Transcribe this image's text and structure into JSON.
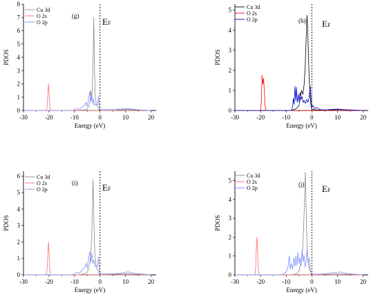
{
  "chart_data": [
    {
      "type": "line",
      "panel_label": "(g)",
      "xlabel": "Energy (eV)",
      "ylabel": "PDOS",
      "xlim": [
        -30,
        22
      ],
      "ylim": [
        0,
        8
      ],
      "xticks": [
        -30,
        -20,
        -10,
        0,
        10,
        20
      ],
      "yticks": [
        0,
        1,
        2,
        3,
        4,
        5,
        6,
        7,
        8
      ],
      "fermi_label": "E",
      "fermi_sub": "F",
      "legend": [
        "Cu 3d",
        "O 2s",
        "O 2p"
      ],
      "series": [
        {
          "name": "Cu 3d",
          "color": "#888888",
          "points": [
            [
              -30,
              0
            ],
            [
              -8,
              0
            ],
            [
              -6,
              0.05
            ],
            [
              -5,
              0.1
            ],
            [
              -4.5,
              0.3
            ],
            [
              -4,
              0.6
            ],
            [
              -3.6,
              1.5
            ],
            [
              -3.3,
              0.8
            ],
            [
              -3,
              1.8
            ],
            [
              -2.7,
              4
            ],
            [
              -2.45,
              7
            ],
            [
              -2.2,
              3.5
            ],
            [
              -1.9,
              1.2
            ],
            [
              -1.5,
              0.5
            ],
            [
              -1,
              0.3
            ],
            [
              -0.5,
              0.1
            ],
            [
              0,
              0
            ],
            [
              5,
              0
            ],
            [
              10,
              0.08
            ],
            [
              14,
              0.04
            ],
            [
              20,
              0
            ]
          ]
        },
        {
          "name": "O 2s",
          "color": "#ff6b6b",
          "points": [
            [
              -30,
              0
            ],
            [
              -21,
              0
            ],
            [
              -20.7,
              0.4
            ],
            [
              -20.4,
              1.5
            ],
            [
              -20.2,
              2
            ],
            [
              -20,
              1.4
            ],
            [
              -19.7,
              0.3
            ],
            [
              -19.4,
              0
            ],
            [
              20,
              0
            ]
          ]
        },
        {
          "name": "O 2p",
          "color": "#7a8bff",
          "points": [
            [
              -30,
              0
            ],
            [
              -11,
              0
            ],
            [
              -10,
              0.05
            ],
            [
              -9,
              0.15
            ],
            [
              -8,
              0.05
            ],
            [
              -7,
              0.25
            ],
            [
              -6,
              0.4
            ],
            [
              -5.5,
              0.6
            ],
            [
              -5,
              0.3
            ],
            [
              -4.5,
              0.9
            ],
            [
              -4,
              1.4
            ],
            [
              -3.6,
              0.7
            ],
            [
              -3.2,
              1.1
            ],
            [
              -2.8,
              0.5
            ],
            [
              -2.5,
              0.9
            ],
            [
              -2.2,
              0.4
            ],
            [
              -1.5,
              0.5
            ],
            [
              -1,
              0.4
            ],
            [
              -0.6,
              1.05
            ],
            [
              -0.3,
              0.3
            ],
            [
              0,
              0.1
            ],
            [
              1,
              0.08
            ],
            [
              3,
              0.06
            ],
            [
              6,
              0.08
            ],
            [
              10,
              0.15
            ],
            [
              13,
              0.1
            ],
            [
              16,
              0.04
            ],
            [
              20,
              0
            ]
          ]
        }
      ]
    },
    {
      "type": "line",
      "panel_label": "(h)",
      "xlabel": "Energy (eV)",
      "ylabel": "PDOS",
      "xlim": [
        -30,
        22
      ],
      "ylim": [
        0,
        5.3
      ],
      "xticks": [
        -30,
        -20,
        -10,
        0,
        10,
        20
      ],
      "yticks": [
        0,
        1,
        2,
        3,
        4,
        5
      ],
      "fermi_label": "E",
      "fermi_sub": "F",
      "legend": [
        "Cu 3d",
        "O 2s",
        "O 2p"
      ],
      "series": [
        {
          "name": "Cu 3d",
          "color": "#000000",
          "points": [
            [
              -30,
              0
            ],
            [
              -8,
              0
            ],
            [
              -6,
              0.1
            ],
            [
              -5,
              0.25
            ],
            [
              -4.5,
              0.6
            ],
            [
              -4,
              1.0
            ],
            [
              -3.5,
              0.8
            ],
            [
              -3,
              1.3
            ],
            [
              -2.6,
              2.2
            ],
            [
              -2.2,
              3.6
            ],
            [
              -1.9,
              4.75
            ],
            [
              -1.6,
              4.1
            ],
            [
              -1.3,
              2.6
            ],
            [
              -1,
              1.5
            ],
            [
              -0.7,
              0.8
            ],
            [
              -0.4,
              0.3
            ],
            [
              0,
              0.05
            ],
            [
              5,
              0
            ],
            [
              10,
              0.05
            ],
            [
              20,
              0
            ]
          ]
        },
        {
          "name": "O 2s",
          "color": "#ff0000",
          "points": [
            [
              -30,
              0
            ],
            [
              -20,
              0
            ],
            [
              -19.7,
              0.4
            ],
            [
              -19.4,
              1.75
            ],
            [
              -19.1,
              1.3
            ],
            [
              -18.8,
              1.6
            ],
            [
              -18.5,
              0.9
            ],
            [
              -18.2,
              0.2
            ],
            [
              -17.9,
              0
            ],
            [
              20,
              0
            ]
          ]
        },
        {
          "name": "O 2p",
          "color": "#0000cc",
          "points": [
            [
              -30,
              0
            ],
            [
              -8,
              0
            ],
            [
              -7.5,
              0.2
            ],
            [
              -7.2,
              0.6
            ],
            [
              -6.9,
              0.3
            ],
            [
              -6.6,
              1.2
            ],
            [
              -6.3,
              0.5
            ],
            [
              -6,
              1.15
            ],
            [
              -5.7,
              0.4
            ],
            [
              -5.3,
              0.8
            ],
            [
              -5,
              0.45
            ],
            [
              -4.6,
              0.9
            ],
            [
              -4.2,
              0.55
            ],
            [
              -3.8,
              0.7
            ],
            [
              -3.4,
              0.4
            ],
            [
              -3,
              0.5
            ],
            [
              -2.5,
              0.35
            ],
            [
              -2,
              0.55
            ],
            [
              -1.5,
              0.4
            ],
            [
              -1,
              0.7
            ],
            [
              -0.6,
              1.2
            ],
            [
              -0.3,
              0.6
            ],
            [
              0,
              0.15
            ],
            [
              0.5,
              0.25
            ],
            [
              1,
              0.1
            ],
            [
              2,
              0.15
            ],
            [
              3,
              0.05
            ],
            [
              5,
              0.03
            ],
            [
              10,
              0.07
            ],
            [
              14,
              0.03
            ],
            [
              20,
              0
            ]
          ]
        }
      ]
    },
    {
      "type": "line",
      "panel_label": "(i)",
      "xlabel": "Energy (eV)",
      "ylabel": "PDOS",
      "xlim": [
        -30,
        22
      ],
      "ylim": [
        0,
        6.3
      ],
      "xticks": [
        -30,
        -20,
        -10,
        0,
        10,
        20
      ],
      "yticks": [
        0,
        1,
        2,
        3,
        4,
        5,
        6
      ],
      "fermi_label": "E",
      "fermi_sub": "F",
      "legend": [
        "Cu 3d",
        "O 2s",
        "O 2p"
      ],
      "series": [
        {
          "name": "Cu 3d",
          "color": "#888888",
          "points": [
            [
              -30,
              0
            ],
            [
              -8,
              0
            ],
            [
              -6,
              0.05
            ],
            [
              -5,
              0.15
            ],
            [
              -4.5,
              0.4
            ],
            [
              -4,
              0.7
            ],
            [
              -3.6,
              1.4
            ],
            [
              -3.3,
              2.2
            ],
            [
              -3,
              3.8
            ],
            [
              -2.75,
              5.8
            ],
            [
              -2.5,
              4
            ],
            [
              -2.2,
              2
            ],
            [
              -1.9,
              1
            ],
            [
              -1.5,
              0.5
            ],
            [
              -1,
              0.3
            ],
            [
              -0.5,
              0.1
            ],
            [
              0,
              0
            ],
            [
              10,
              0.06
            ],
            [
              20,
              0
            ]
          ]
        },
        {
          "name": "O 2s",
          "color": "#ff6b6b",
          "points": [
            [
              -30,
              0
            ],
            [
              -21,
              0
            ],
            [
              -20.7,
              0.4
            ],
            [
              -20.4,
              1.5
            ],
            [
              -20.2,
              2
            ],
            [
              -20,
              1.4
            ],
            [
              -19.7,
              0.3
            ],
            [
              -19.4,
              0
            ],
            [
              20,
              0
            ]
          ]
        },
        {
          "name": "O 2p",
          "color": "#7a8bff",
          "points": [
            [
              -30,
              0
            ],
            [
              -11,
              0
            ],
            [
              -10,
              0.05
            ],
            [
              -9,
              0.15
            ],
            [
              -8,
              0.1
            ],
            [
              -7,
              0.3
            ],
            [
              -6,
              0.45
            ],
            [
              -5.5,
              0.7
            ],
            [
              -5,
              0.4
            ],
            [
              -4.5,
              1.0
            ],
            [
              -4,
              1.4
            ],
            [
              -3.6,
              0.8
            ],
            [
              -3.2,
              1.3
            ],
            [
              -2.8,
              0.7
            ],
            [
              -2.4,
              0.9
            ],
            [
              -2,
              0.5
            ],
            [
              -1.5,
              0.55
            ],
            [
              -1,
              0.5
            ],
            [
              -0.6,
              1.1
            ],
            [
              -0.3,
              0.3
            ],
            [
              0,
              0.1
            ],
            [
              1,
              0.06
            ],
            [
              4,
              0.05
            ],
            [
              8,
              0.1
            ],
            [
              11,
              0.18
            ],
            [
              14,
              0.08
            ],
            [
              20,
              0
            ]
          ]
        }
      ]
    },
    {
      "type": "line",
      "panel_label": "(j)",
      "xlabel": "Energy (eV)",
      "ylabel": "PDOS",
      "xlim": [
        -30,
        22
      ],
      "ylim": [
        0,
        5.5
      ],
      "xticks": [
        -30,
        -20,
        -10,
        0,
        10,
        20
      ],
      "yticks": [
        0,
        1,
        2,
        3,
        4,
        5
      ],
      "fermi_label": "E",
      "fermi_sub": "F",
      "legend": [
        "Cu 3d",
        "O 2s",
        "O 2p"
      ],
      "series": [
        {
          "name": "Cu 3d",
          "color": "#888888",
          "points": [
            [
              -30,
              0
            ],
            [
              -8,
              0
            ],
            [
              -6,
              0.05
            ],
            [
              -5,
              0.2
            ],
            [
              -4.5,
              0.5
            ],
            [
              -4,
              0.8
            ],
            [
              -3.6,
              1.3
            ],
            [
              -3.2,
              2.5
            ],
            [
              -2.9,
              3.8
            ],
            [
              -2.55,
              5.45
            ],
            [
              -2.3,
              4
            ],
            [
              -2,
              2.2
            ],
            [
              -1.7,
              1
            ],
            [
              -1.3,
              0.5
            ],
            [
              -0.8,
              0.25
            ],
            [
              -0.4,
              0.1
            ],
            [
              0,
              0
            ],
            [
              10,
              0.05
            ],
            [
              20,
              0
            ]
          ]
        },
        {
          "name": "O 2s",
          "color": "#ff6b6b",
          "points": [
            [
              -30,
              0
            ],
            [
              -22.2,
              0
            ],
            [
              -21.9,
              0.4
            ],
            [
              -21.6,
              1.6
            ],
            [
              -21.4,
              2.0
            ],
            [
              -21.2,
              1.4
            ],
            [
              -20.9,
              0.3
            ],
            [
              -20.6,
              0
            ],
            [
              20,
              0
            ]
          ]
        },
        {
          "name": "O 2p",
          "color": "#7a8bff",
          "points": [
            [
              -30,
              0
            ],
            [
              -12,
              0
            ],
            [
              -11,
              0.05
            ],
            [
              -10,
              0.15
            ],
            [
              -9.3,
              0.4
            ],
            [
              -8.8,
              1.0
            ],
            [
              -8.4,
              0.3
            ],
            [
              -8,
              0.6
            ],
            [
              -7.5,
              0.3
            ],
            [
              -7,
              0.9
            ],
            [
              -6.6,
              0.45
            ],
            [
              -6.2,
              1.0
            ],
            [
              -5.8,
              0.5
            ],
            [
              -5.4,
              1.2
            ],
            [
              -5,
              0.6
            ],
            [
              -4.6,
              0.9
            ],
            [
              -4.2,
              0.5
            ],
            [
              -3.8,
              1.3
            ],
            [
              -3.4,
              0.7
            ],
            [
              -3,
              1.05
            ],
            [
              -2.6,
              0.4
            ],
            [
              -2.2,
              0.8
            ],
            [
              -1.8,
              1.4
            ],
            [
              -1.4,
              0.6
            ],
            [
              -1,
              0.9
            ],
            [
              -0.6,
              0.3
            ],
            [
              -0.3,
              0.1
            ],
            [
              0,
              0.05
            ],
            [
              2,
              0.03
            ],
            [
              5,
              0.05
            ],
            [
              8,
              0.12
            ],
            [
              11,
              0.15
            ],
            [
              14,
              0.06
            ],
            [
              20,
              0
            ]
          ]
        }
      ]
    }
  ]
}
